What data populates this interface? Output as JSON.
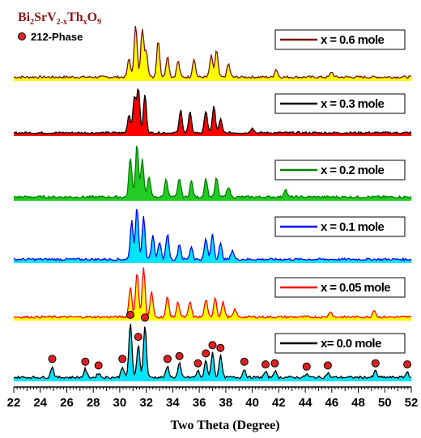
{
  "chart_data": {
    "type": "line",
    "title": "",
    "xlabel": "Two Theta (Degree)",
    "ylabel": "",
    "xlim": [
      22,
      52
    ],
    "x_ticks": [
      22,
      24,
      26,
      28,
      30,
      32,
      34,
      36,
      38,
      40,
      42,
      44,
      46,
      48,
      50,
      52
    ],
    "compound_label": {
      "base": [
        "Bi",
        "SrV",
        "Th",
        "O"
      ],
      "subs": [
        "2",
        "2-x",
        "x",
        "9"
      ]
    },
    "marker_legend": "212-Phase",
    "marker_color": "#E02020",
    "series": [
      {
        "name": "x = 0.6 mole",
        "line_color": "#7B1010",
        "fill_color": "#FFFF00",
        "peaks": [
          [
            30.7,
            0.35
          ],
          [
            31.2,
            1.0
          ],
          [
            31.7,
            0.9
          ],
          [
            32.0,
            0.5
          ],
          [
            32.9,
            0.7
          ],
          [
            33.6,
            0.4
          ],
          [
            34.4,
            0.3
          ],
          [
            35.6,
            0.35
          ],
          [
            36.9,
            0.4
          ],
          [
            37.3,
            0.5
          ],
          [
            38.2,
            0.25
          ],
          [
            41.8,
            0.15
          ],
          [
            46.0,
            0.1
          ]
        ]
      },
      {
        "name": "x = 0.3 mole",
        "line_color": "#000000",
        "fill_color": "#FF0000",
        "peaks": [
          [
            30.7,
            0.4
          ],
          [
            31.1,
            0.8
          ],
          [
            31.4,
            1.0
          ],
          [
            31.9,
            0.85
          ],
          [
            34.6,
            0.5
          ],
          [
            35.3,
            0.45
          ],
          [
            36.5,
            0.5
          ],
          [
            37.1,
            0.6
          ],
          [
            37.6,
            0.3
          ],
          [
            40.0,
            0.12
          ]
        ]
      },
      {
        "name": "x = 0.2 mole",
        "line_color": "#008000",
        "fill_color": "#22CC22",
        "peaks": [
          [
            30.8,
            0.75
          ],
          [
            31.3,
            1.0
          ],
          [
            31.7,
            0.7
          ],
          [
            32.2,
            0.4
          ],
          [
            33.5,
            0.35
          ],
          [
            34.5,
            0.35
          ],
          [
            35.4,
            0.3
          ],
          [
            36.5,
            0.35
          ],
          [
            37.3,
            0.35
          ],
          [
            38.2,
            0.2
          ],
          [
            42.5,
            0.15
          ]
        ]
      },
      {
        "name": "x = 0.1 mole",
        "line_color": "#0000FF",
        "fill_color": "#00E5FF",
        "peaks": [
          [
            30.9,
            0.75
          ],
          [
            31.3,
            1.0
          ],
          [
            31.8,
            0.85
          ],
          [
            32.5,
            0.45
          ],
          [
            33.0,
            0.35
          ],
          [
            33.6,
            0.5
          ],
          [
            34.5,
            0.3
          ],
          [
            35.4,
            0.25
          ],
          [
            36.5,
            0.4
          ],
          [
            37.0,
            0.5
          ],
          [
            37.6,
            0.3
          ],
          [
            38.5,
            0.18
          ]
        ]
      },
      {
        "name": "x = 0.05 mole",
        "line_color": "#FF0000",
        "fill_color": "#FFFF00",
        "peaks": [
          [
            30.8,
            0.6
          ],
          [
            31.3,
            0.9
          ],
          [
            31.8,
            1.0
          ],
          [
            32.4,
            0.5
          ],
          [
            33.6,
            0.4
          ],
          [
            34.4,
            0.3
          ],
          [
            35.3,
            0.3
          ],
          [
            36.5,
            0.35
          ],
          [
            37.2,
            0.4
          ],
          [
            37.8,
            0.3
          ],
          [
            38.7,
            0.15
          ],
          [
            45.9,
            0.12
          ],
          [
            49.2,
            0.15
          ]
        ]
      },
      {
        "name": "x= 0.0 mole",
        "line_color": "#000000",
        "fill_color": "#00E5FF",
        "peaks": [
          [
            24.9,
            0.2
          ],
          [
            27.4,
            0.15
          ],
          [
            28.4,
            0.08
          ],
          [
            30.2,
            0.2
          ],
          [
            30.8,
            1.0
          ],
          [
            31.4,
            0.6
          ],
          [
            31.9,
            0.95
          ],
          [
            33.6,
            0.2
          ],
          [
            34.5,
            0.25
          ],
          [
            35.9,
            0.12
          ],
          [
            36.5,
            0.3
          ],
          [
            37.0,
            0.45
          ],
          [
            37.6,
            0.4
          ],
          [
            39.4,
            0.15
          ],
          [
            41.0,
            0.1
          ],
          [
            41.7,
            0.12
          ],
          [
            44.1,
            0.06
          ],
          [
            45.7,
            0.08
          ],
          [
            49.3,
            0.12
          ],
          [
            51.7,
            0.1
          ]
        ],
        "markers_212_phase": [
          24.9,
          27.4,
          28.4,
          30.2,
          30.8,
          31.4,
          31.9,
          33.6,
          34.5,
          35.9,
          36.5,
          37.0,
          37.6,
          39.4,
          41.0,
          41.7,
          44.1,
          45.7,
          49.3,
          51.7
        ]
      }
    ]
  }
}
